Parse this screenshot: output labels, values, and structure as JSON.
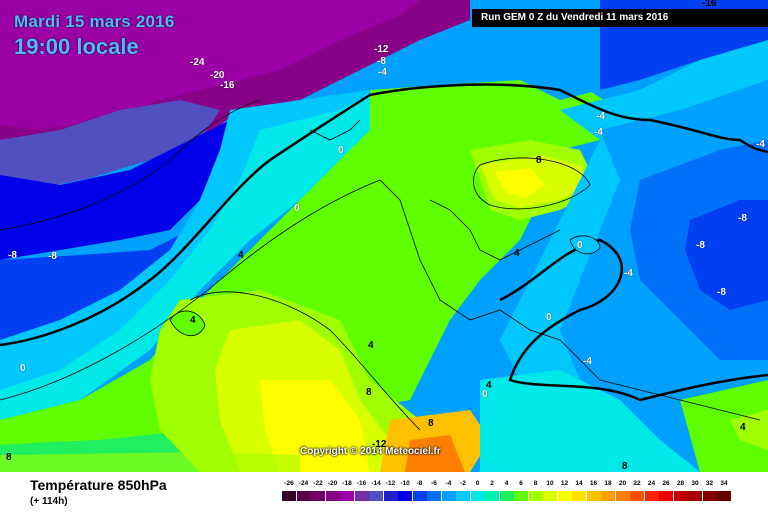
{
  "header": {
    "date": "Mardi 15 mars 2016",
    "time": "19:00 locale",
    "run": "Run GEM 0 Z du Vendredi 11 mars 2016"
  },
  "copyright": "Copyright © 2014 Meteociel.fr",
  "footer": {
    "variable": "Température 850hPa",
    "lead": "(+ 114h)"
  },
  "legend": {
    "labels": [
      "-26",
      "-24",
      "-22",
      "-20",
      "-18",
      "-16",
      "-14",
      "-12",
      "-10",
      "-8",
      "-6",
      "-4",
      "-2",
      "0",
      "2",
      "4",
      "6",
      "8",
      "10",
      "12",
      "14",
      "16",
      "18",
      "20",
      "22",
      "24",
      "26",
      "28",
      "30",
      "32",
      "34"
    ],
    "colors": [
      "#3a0028",
      "#55004a",
      "#6e0068",
      "#880088",
      "#9b00a6",
      "#7a2aa0",
      "#5050c0",
      "#2020c8",
      "#0000e8",
      "#0040f0",
      "#0070f8",
      "#00a0ff",
      "#00c8ff",
      "#00e8e8",
      "#00f0b0",
      "#20f060",
      "#60ff00",
      "#a0ff00",
      "#d8ff00",
      "#ffff00",
      "#ffe000",
      "#ffc000",
      "#ffa000",
      "#ff8000",
      "#ff5000",
      "#ff2000",
      "#e80000",
      "#c00000",
      "#a00000",
      "#800000",
      "#600000"
    ]
  },
  "isotherm_labels": [
    "-16",
    "-12",
    "-8",
    "-4",
    "-24",
    "-20",
    "-16",
    "0",
    "0",
    "-8",
    "-8",
    "4",
    "4",
    "8",
    "4",
    "0",
    "8",
    "0",
    "-4",
    "-8",
    "-8",
    "-8",
    "-4",
    "-4",
    "4",
    "-4",
    "0",
    "8",
    "-12",
    "8",
    "0",
    "4",
    "8",
    "-4",
    "4"
  ]
}
